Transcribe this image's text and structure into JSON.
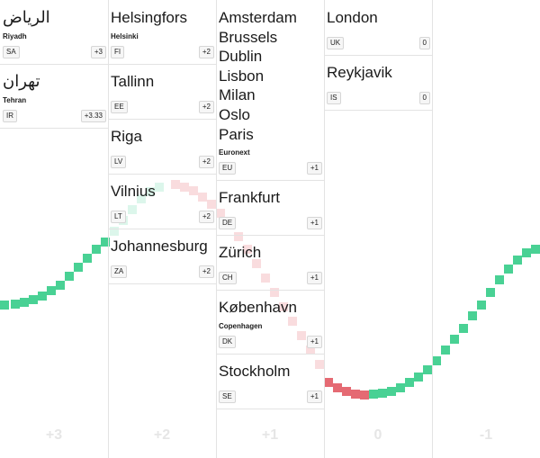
{
  "columns": [
    {
      "offset_label": "+3",
      "cards": [
        {
          "cities": [
            "الرياض"
          ],
          "rtl": true,
          "sub": "Riyadh",
          "code": "SA",
          "offset": "+3"
        },
        {
          "cities": [
            "تهران"
          ],
          "rtl": true,
          "sub": "Tehran",
          "code": "IR",
          "offset": "+3.33"
        }
      ]
    },
    {
      "offset_label": "+2",
      "cards": [
        {
          "cities": [
            "Helsingfors"
          ],
          "sub": "Helsinki",
          "code": "FI",
          "offset": "+2"
        },
        {
          "cities": [
            "Tallinn"
          ],
          "sub": "",
          "code": "EE",
          "offset": "+2"
        },
        {
          "cities": [
            "Riga"
          ],
          "sub": "",
          "code": "LV",
          "offset": "+2"
        },
        {
          "cities": [
            "Vilnius"
          ],
          "sub": "",
          "code": "LT",
          "offset": "+2"
        },
        {
          "cities": [
            "Johannesburg"
          ],
          "sub": "",
          "code": "ZA",
          "offset": "+2"
        }
      ]
    },
    {
      "offset_label": "+1",
      "cards": [
        {
          "cities": [
            "Amsterdam",
            "Brussels",
            "Dublin",
            "Lisbon",
            "Milan",
            "Oslo",
            "Paris"
          ],
          "sub": "Euronext",
          "code": "EU",
          "offset": "+1"
        },
        {
          "cities": [
            "Frankfurt"
          ],
          "sub": "",
          "code": "DE",
          "offset": "+1"
        },
        {
          "cities": [
            "Zürich"
          ],
          "sub": "",
          "code": "CH",
          "offset": "+1"
        },
        {
          "cities": [
            "København"
          ],
          "sub": "Copenhagen",
          "code": "DK",
          "offset": "+1"
        },
        {
          "cities": [
            "Stockholm"
          ],
          "sub": "",
          "code": "SE",
          "offset": "+1"
        }
      ]
    },
    {
      "offset_label": "0",
      "cards": [
        {
          "cities": [
            "London"
          ],
          "sub": "",
          "code": "UK",
          "offset": "0"
        },
        {
          "cities": [
            "Reykjavik"
          ],
          "sub": "",
          "code": "IS",
          "offset": "0"
        }
      ]
    },
    {
      "offset_label": "-1",
      "cards": []
    }
  ],
  "colors": {
    "up": "#3fcf8e",
    "down": "#e0505a",
    "grid": "#e3e3e3",
    "axis_label": "#e6e6e6"
  }
}
